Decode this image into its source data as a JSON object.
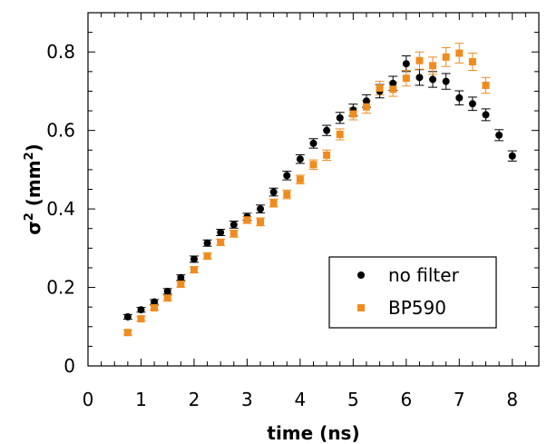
{
  "chart_data": {
    "type": "scatter",
    "title": "",
    "xlabel": "time (ns)",
    "ylabel_parts": [
      "σ",
      "2",
      " (mm",
      "2",
      ")"
    ],
    "xlim": [
      0,
      8.5
    ],
    "ylim": [
      0,
      0.9
    ],
    "x_ticks": [
      "0",
      "1",
      "2",
      "3",
      "4",
      "5",
      "6",
      "7",
      "8"
    ],
    "x_tick_values": [
      0,
      1,
      2,
      3,
      4,
      5,
      6,
      7,
      8
    ],
    "y_ticks": [
      "0",
      "0.2",
      "0.4",
      "0.6",
      "0.8"
    ],
    "y_tick_values": [
      0,
      0.2,
      0.4,
      0.6,
      0.8
    ],
    "grid": false,
    "legend_position": "lower-right",
    "series": [
      {
        "name": "no filter",
        "marker": "circle",
        "color": "#000000",
        "x": [
          0.75,
          1.0,
          1.25,
          1.5,
          1.75,
          2.0,
          2.25,
          2.5,
          2.75,
          3.0,
          3.25,
          3.5,
          3.75,
          4.0,
          4.25,
          4.5,
          4.75,
          5.0,
          5.25,
          5.5,
          5.75,
          6.0,
          6.25,
          6.5,
          6.75,
          7.0,
          7.25,
          7.5,
          7.75,
          8.0
        ],
        "y": [
          0.125,
          0.143,
          0.163,
          0.19,
          0.225,
          0.272,
          0.313,
          0.34,
          0.36,
          0.38,
          0.4,
          0.443,
          0.485,
          0.527,
          0.567,
          0.6,
          0.632,
          0.652,
          0.675,
          0.7,
          0.72,
          0.77,
          0.735,
          0.73,
          0.725,
          0.683,
          0.668,
          0.64,
          0.588,
          0.535
        ],
        "err": [
          0.006,
          0.006,
          0.006,
          0.007,
          0.007,
          0.008,
          0.008,
          0.008,
          0.009,
          0.009,
          0.01,
          0.01,
          0.011,
          0.011,
          0.012,
          0.013,
          0.014,
          0.015,
          0.016,
          0.017,
          0.018,
          0.02,
          0.02,
          0.02,
          0.02,
          0.018,
          0.017,
          0.015,
          0.014,
          0.013
        ]
      },
      {
        "name": "BP590",
        "marker": "square",
        "color": "#F08C1E",
        "x": [
          0.75,
          1.0,
          1.25,
          1.5,
          1.75,
          2.0,
          2.25,
          2.5,
          2.75,
          3.0,
          3.25,
          3.5,
          3.75,
          4.0,
          4.25,
          4.5,
          4.75,
          5.0,
          5.25,
          5.5,
          5.75,
          6.0,
          6.25,
          6.5,
          6.75,
          7.0,
          7.25,
          7.5
        ],
        "y": [
          0.085,
          0.12,
          0.148,
          0.173,
          0.208,
          0.245,
          0.28,
          0.315,
          0.337,
          0.372,
          0.367,
          0.415,
          0.437,
          0.475,
          0.513,
          0.537,
          0.59,
          0.642,
          0.66,
          0.708,
          0.705,
          0.733,
          0.778,
          0.765,
          0.787,
          0.797,
          0.775,
          0.715
        ],
        "err": [
          0.006,
          0.006,
          0.006,
          0.007,
          0.007,
          0.008,
          0.008,
          0.008,
          0.009,
          0.009,
          0.01,
          0.01,
          0.011,
          0.011,
          0.012,
          0.013,
          0.014,
          0.015,
          0.016,
          0.017,
          0.018,
          0.02,
          0.022,
          0.022,
          0.024,
          0.025,
          0.022,
          0.02
        ]
      }
    ]
  }
}
